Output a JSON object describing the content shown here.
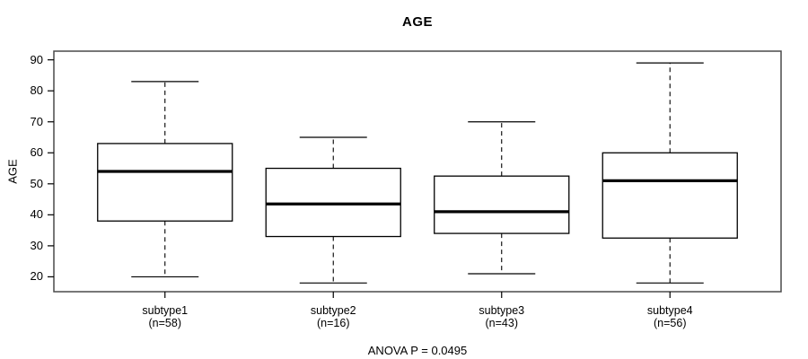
{
  "chart_data": {
    "type": "boxplot",
    "title": "AGE",
    "ylabel": "AGE",
    "xlabel": "",
    "annotation": "ANOVA P = 0.0495",
    "ylim": [
      15.2,
      92.8
    ],
    "yticks": [
      20,
      30,
      40,
      50,
      60,
      70,
      80,
      90
    ],
    "grid": false,
    "categories": [
      "subtype1",
      "subtype2",
      "subtype3",
      "subtype4"
    ],
    "category_sublabels": [
      "(n=58)",
      "(n=16)",
      "(n=43)",
      "(n=56)"
    ],
    "series": [
      {
        "name": "subtype1",
        "n": 58,
        "whisker_low": 20,
        "q1": 38,
        "median": 54,
        "q3": 63,
        "whisker_high": 83
      },
      {
        "name": "subtype2",
        "n": 16,
        "whisker_low": 18,
        "q1": 33,
        "median": 43.5,
        "q3": 55,
        "whisker_high": 65
      },
      {
        "name": "subtype3",
        "n": 43,
        "whisker_low": 21,
        "q1": 34,
        "median": 41,
        "q3": 52.5,
        "whisker_high": 70
      },
      {
        "name": "subtype4",
        "n": 56,
        "whisker_low": 18,
        "q1": 32.5,
        "median": 51,
        "q3": 60,
        "whisker_high": 89
      }
    ],
    "colors": {
      "background": "#ffffff",
      "frame": "#4a4a4a",
      "box_border": "#000000",
      "median": "#000000",
      "text": "#000000"
    }
  }
}
